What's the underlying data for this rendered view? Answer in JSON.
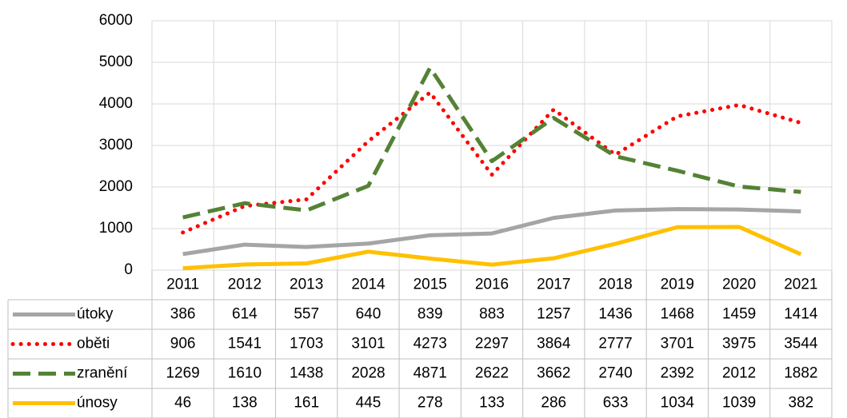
{
  "chart_data": {
    "type": "line",
    "categories": [
      "2011",
      "2012",
      "2013",
      "2014",
      "2015",
      "2016",
      "2017",
      "2018",
      "2019",
      "2020",
      "2021"
    ],
    "series": [
      {
        "name": "útoky",
        "color": "#a5a5a5",
        "values": [
          386,
          614,
          557,
          640,
          839,
          883,
          1257,
          1436,
          1468,
          1459,
          1414
        ]
      },
      {
        "name": "oběti",
        "color": "#ff0000",
        "values": [
          906,
          1541,
          1703,
          3101,
          4273,
          2297,
          3864,
          2777,
          3701,
          3975,
          3544
        ]
      },
      {
        "name": "zranění",
        "color": "#548235",
        "values": [
          1269,
          1610,
          1438,
          2028,
          4871,
          2622,
          3662,
          2740,
          2392,
          2012,
          1882
        ]
      },
      {
        "name": "únosy",
        "color": "#ffc000",
        "values": [
          46,
          138,
          161,
          445,
          278,
          133,
          286,
          633,
          1034,
          1039,
          382
        ]
      }
    ],
    "ylim": [
      0,
      6000
    ],
    "yticks": [
      0,
      1000,
      2000,
      3000,
      4000,
      5000,
      6000
    ],
    "grid": true
  }
}
